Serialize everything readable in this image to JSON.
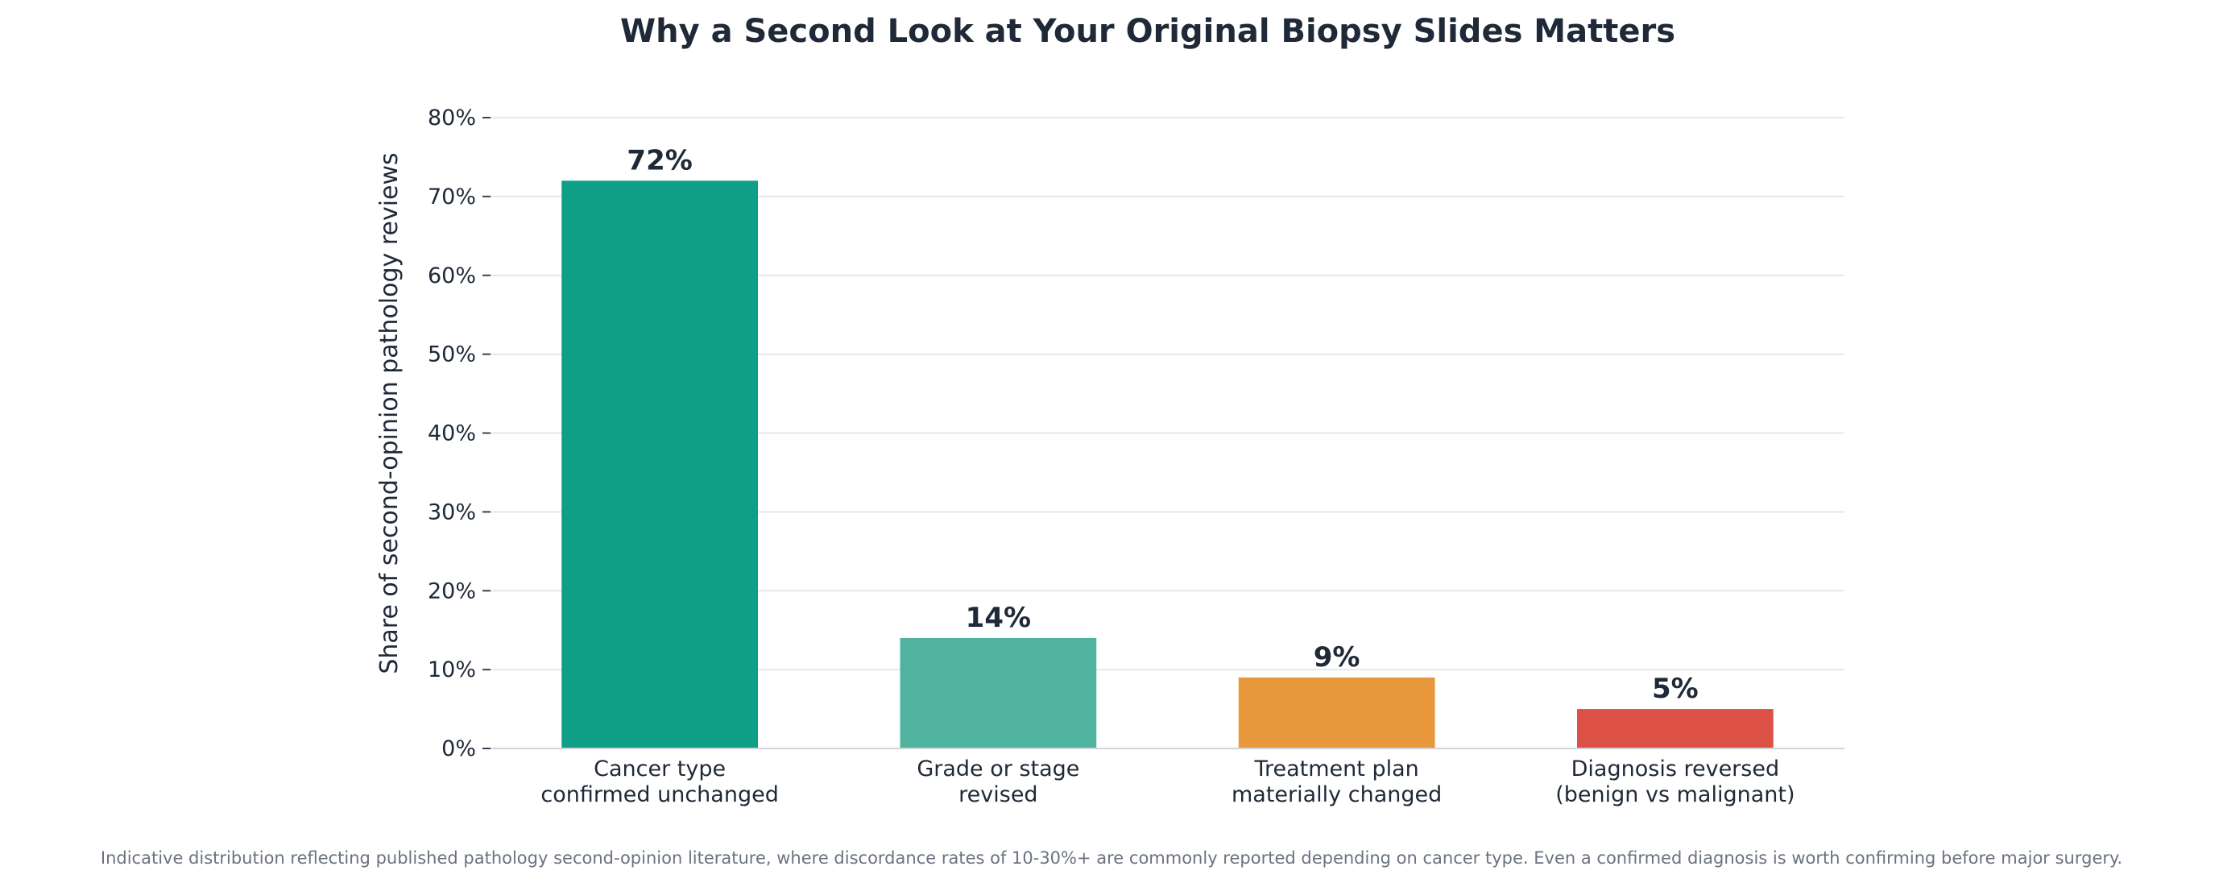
{
  "chart_data": {
    "type": "bar",
    "title": "Why a Second Look at Your Original Biopsy Slides Matters",
    "ylabel": "Share of second-opinion pathology reviews",
    "xlabel": "",
    "ylim": [
      0,
      80
    ],
    "yticks": [
      0,
      10,
      20,
      30,
      40,
      50,
      60,
      70,
      80
    ],
    "ytick_labels": [
      "0%",
      "10%",
      "20%",
      "30%",
      "40%",
      "50%",
      "60%",
      "70%",
      "80%"
    ],
    "grid": true,
    "categories": [
      [
        "Cancer type",
        "confirmed unchanged"
      ],
      [
        "Grade or stage",
        "revised"
      ],
      [
        "Treatment plan",
        "materially changed"
      ],
      [
        "Diagnosis reversed",
        "(benign vs malignant)"
      ]
    ],
    "values": [
      72,
      14,
      9,
      5
    ],
    "data_labels": [
      "72%",
      "14%",
      "9%",
      "5%"
    ],
    "colors": [
      "#0e9f86",
      "#50b3a0",
      "#e8973b",
      "#dc5045"
    ],
    "footnote": "Indicative distribution reflecting published pathology second-opinion literature, where discordance rates of 10-30%+ are commonly reported depending on cancer type. Even a confirmed diagnosis is worth confirming before major surgery."
  }
}
